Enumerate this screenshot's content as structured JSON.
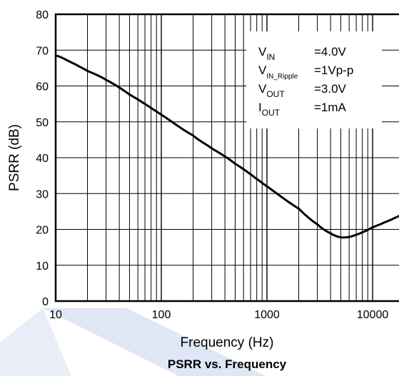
{
  "chart_data": {
    "type": "line",
    "title": "PSRR vs. Frequency",
    "xlabel": "Frequency (Hz)",
    "ylabel": "PSRR (dB)",
    "x_scale": "log",
    "xlim": [
      10,
      100000
    ],
    "ylim": [
      0,
      80
    ],
    "grid": true,
    "x_ticks": [
      {
        "value": 10,
        "label": "10"
      },
      {
        "value": 100,
        "label": "100"
      },
      {
        "value": 1000,
        "label": "1000"
      },
      {
        "value": 10000,
        "label": "10000"
      }
    ],
    "y_ticks": [
      {
        "value": 0,
        "label": "0"
      },
      {
        "value": 10,
        "label": "10"
      },
      {
        "value": 20,
        "label": "20"
      },
      {
        "value": 30,
        "label": "30"
      },
      {
        "value": 40,
        "label": "40"
      },
      {
        "value": 50,
        "label": "50"
      },
      {
        "value": 60,
        "label": "60"
      },
      {
        "value": 70,
        "label": "70"
      },
      {
        "value": 80,
        "label": "80"
      }
    ],
    "series": [
      {
        "color": "#000000",
        "x": [
          10,
          15,
          20,
          30,
          50,
          100,
          200,
          300,
          500,
          1000,
          2000,
          3000,
          4000,
          5000,
          6000,
          7000,
          8000,
          10000,
          15000,
          20000,
          30000
        ],
        "y": [
          68.5,
          66.2,
          64.2,
          61.7,
          57.6,
          52.0,
          46.2,
          42.6,
          38.3,
          32.0,
          25.8,
          21.4,
          18.9,
          17.8,
          17.9,
          18.5,
          19.2,
          20.6,
          22.7,
          24.5,
          27.0
        ]
      }
    ],
    "legend": {
      "placement": "top-right",
      "entries": [
        {
          "main": "V",
          "sub": "IN",
          "value": "=4.0V"
        },
        {
          "main": "V",
          "sub": "IN_Ripple",
          "value": "=1Vp-p"
        },
        {
          "main": "V",
          "sub": "OUT",
          "value": "=3.0V"
        },
        {
          "main": "I",
          "sub": "OUT",
          "value": "=1mA"
        }
      ]
    }
  }
}
